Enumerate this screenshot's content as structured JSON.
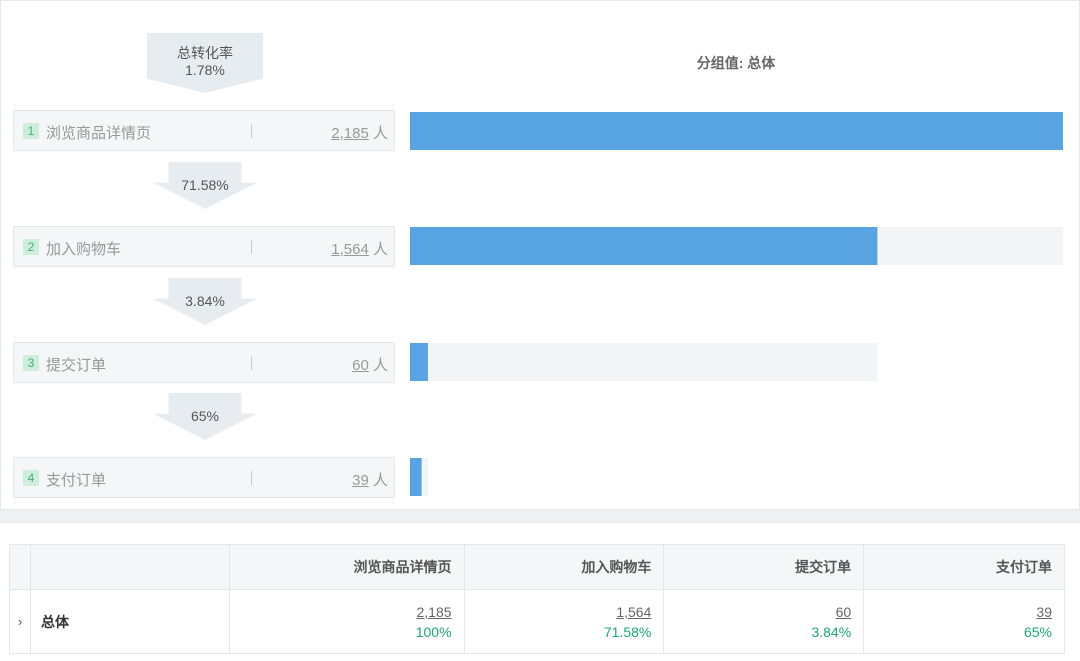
{
  "funnel": {
    "total_label": "总转化率",
    "total_rate": "1.78%",
    "group_label": "分组值: 总体",
    "unit": "人",
    "steps": [
      {
        "num": "1",
        "name": "浏览商品详情页",
        "value": "2,185"
      },
      {
        "num": "2",
        "name": "加入购物车",
        "value": "1,564"
      },
      {
        "num": "3",
        "name": "提交订单",
        "value": "60"
      },
      {
        "num": "4",
        "name": "支付订单",
        "value": "39"
      }
    ],
    "conversions": [
      "71.58%",
      "3.84%",
      "65%"
    ]
  },
  "chart_data": {
    "type": "bar",
    "orientation": "horizontal",
    "title": "分组值: 总体",
    "categories": [
      "浏览商品详情页",
      "加入购物车",
      "提交订单",
      "支付订单"
    ],
    "values": [
      2185,
      1564,
      60,
      39
    ],
    "colors": {
      "bar": "#58a3e1",
      "track": "#f3f4f6"
    }
  },
  "table": {
    "headers": [
      "",
      "",
      "浏览商品详情页",
      "加入购物车",
      "提交订单",
      "支付订单"
    ],
    "rows": [
      {
        "expand": "›",
        "segment": "总体",
        "cells": [
          {
            "n": "2,185",
            "p": "100%"
          },
          {
            "n": "1,564",
            "p": "71.58%"
          },
          {
            "n": "60",
            "p": "3.84%"
          },
          {
            "n": "39",
            "p": "65%"
          }
        ]
      }
    ]
  }
}
